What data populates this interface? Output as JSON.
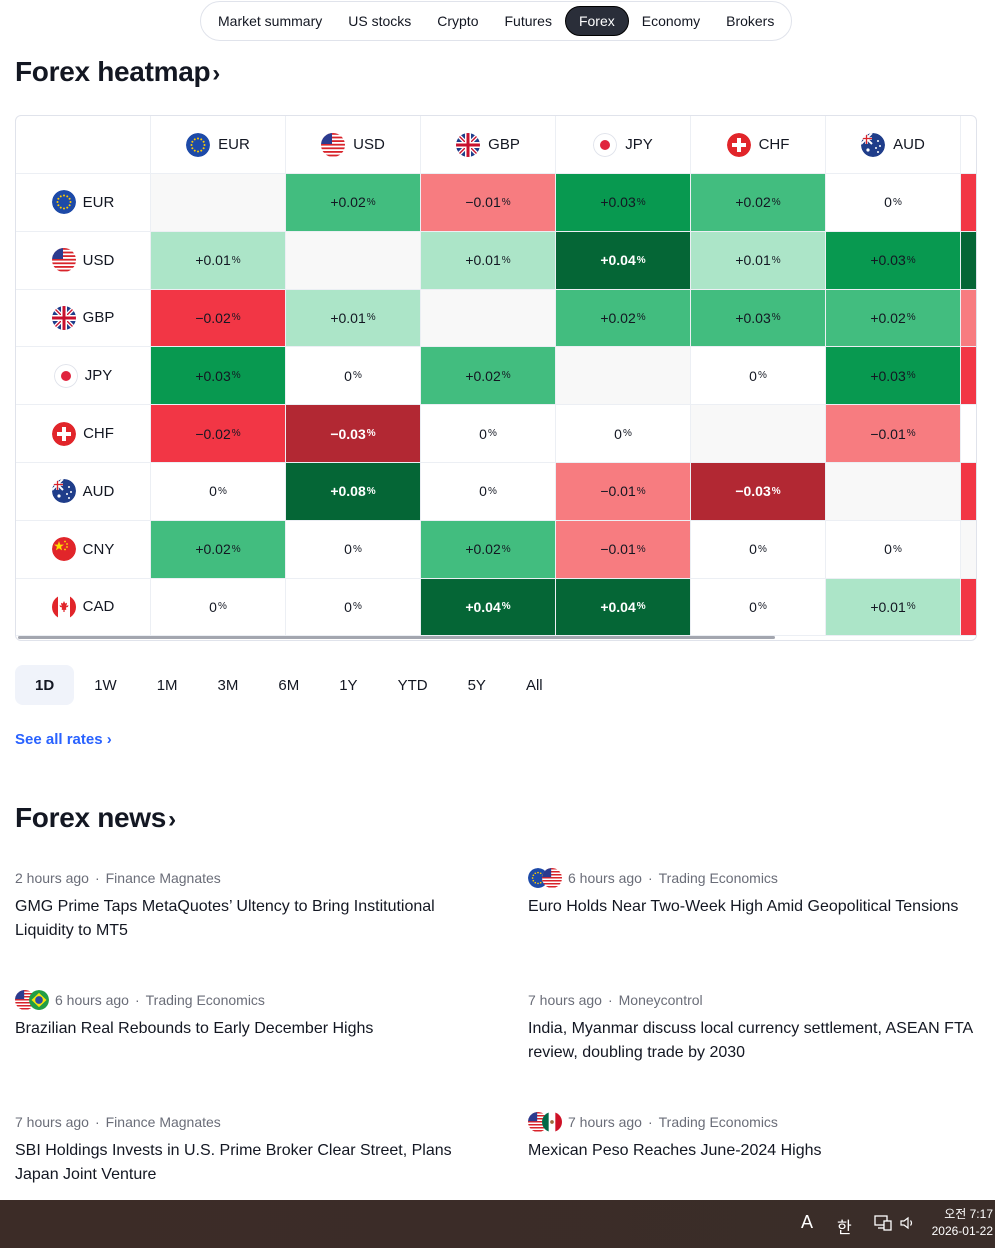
{
  "topnav": {
    "items": [
      "Market summary",
      "US stocks",
      "Crypto",
      "Futures",
      "Forex",
      "Economy",
      "Brokers"
    ],
    "active": "Forex"
  },
  "heatmap": {
    "title": "Forex heatmap",
    "chevron": "›",
    "columns": [
      "EUR",
      "USD",
      "GBP",
      "JPY",
      "CHF",
      "AUD"
    ],
    "rows": [
      {
        "code": "EUR",
        "cells": [
          {
            "v": "",
            "tone": "self"
          },
          {
            "v": "+0.02",
            "tone": "g2"
          },
          {
            "v": "−0.01",
            "tone": "r1"
          },
          {
            "v": "+0.03",
            "tone": "g3"
          },
          {
            "v": "+0.02",
            "tone": "g2"
          },
          {
            "v": "0",
            "tone": "n"
          }
        ],
        "edge": "r3"
      },
      {
        "code": "USD",
        "cells": [
          {
            "v": "+0.01",
            "tone": "g1"
          },
          {
            "v": "",
            "tone": "self"
          },
          {
            "v": "+0.01",
            "tone": "g1"
          },
          {
            "v": "+0.04",
            "tone": "g4"
          },
          {
            "v": "+0.01",
            "tone": "g1"
          },
          {
            "v": "+0.03",
            "tone": "g3"
          }
        ],
        "edge": "g4"
      },
      {
        "code": "GBP",
        "cells": [
          {
            "v": "−0.02",
            "tone": "r3"
          },
          {
            "v": "+0.01",
            "tone": "g1"
          },
          {
            "v": "",
            "tone": "self"
          },
          {
            "v": "+0.02",
            "tone": "g2"
          },
          {
            "v": "+0.03",
            "tone": "g2"
          },
          {
            "v": "+0.02",
            "tone": "g2"
          }
        ],
        "edge": "r1"
      },
      {
        "code": "JPY",
        "cells": [
          {
            "v": "+0.03",
            "tone": "g3"
          },
          {
            "v": "0",
            "tone": "n"
          },
          {
            "v": "+0.02",
            "tone": "g2"
          },
          {
            "v": "",
            "tone": "self"
          },
          {
            "v": "0",
            "tone": "n"
          },
          {
            "v": "+0.03",
            "tone": "g3"
          }
        ],
        "edge": "r3"
      },
      {
        "code": "CHF",
        "cells": [
          {
            "v": "−0.02",
            "tone": "r3"
          },
          {
            "v": "−0.03",
            "tone": "r4"
          },
          {
            "v": "0",
            "tone": "n"
          },
          {
            "v": "0",
            "tone": "n"
          },
          {
            "v": "",
            "tone": "self"
          },
          {
            "v": "−0.01",
            "tone": "r1"
          }
        ],
        "edge": "n"
      },
      {
        "code": "AUD",
        "cells": [
          {
            "v": "0",
            "tone": "n"
          },
          {
            "v": "+0.08",
            "tone": "g4"
          },
          {
            "v": "0",
            "tone": "n"
          },
          {
            "v": "−0.01",
            "tone": "r1"
          },
          {
            "v": "−0.03",
            "tone": "r4"
          },
          {
            "v": "",
            "tone": "self"
          }
        ],
        "edge": "r3"
      },
      {
        "code": "CNY",
        "cells": [
          {
            "v": "+0.02",
            "tone": "g2"
          },
          {
            "v": "0",
            "tone": "n"
          },
          {
            "v": "+0.02",
            "tone": "g2"
          },
          {
            "v": "−0.01",
            "tone": "r1"
          },
          {
            "v": "0",
            "tone": "n"
          },
          {
            "v": "0",
            "tone": "n"
          }
        ],
        "edge": "self"
      },
      {
        "code": "CAD",
        "cells": [
          {
            "v": "0",
            "tone": "n"
          },
          {
            "v": "0",
            "tone": "n"
          },
          {
            "v": "+0.04",
            "tone": "g4"
          },
          {
            "v": "+0.04",
            "tone": "g4"
          },
          {
            "v": "0",
            "tone": "n"
          },
          {
            "v": "+0.01",
            "tone": "g1"
          }
        ],
        "edge": "r3"
      }
    ],
    "pct": "%",
    "tones": {
      "g1": {
        "bg": "#ace5c8",
        "fg": "#131722"
      },
      "g2": {
        "bg": "#42bd7f",
        "fg": "#131722"
      },
      "g3": {
        "bg": "#089950",
        "fg": "#131722"
      },
      "g4": {
        "bg": "#056636",
        "fg": "#ffffff"
      },
      "r1": {
        "bg": "#f77c80",
        "fg": "#131722"
      },
      "r3": {
        "bg": "#f23645",
        "fg": "#131722"
      },
      "r4": {
        "bg": "#b22833",
        "fg": "#ffffff"
      },
      "n": {
        "bg": "#ffffff",
        "fg": "#131722"
      },
      "self": {
        "bg": "#f8f8f8",
        "fg": "#131722"
      }
    }
  },
  "ranges": {
    "items": [
      "1D",
      "1W",
      "1M",
      "3M",
      "6M",
      "1Y",
      "YTD",
      "5Y",
      "All"
    ],
    "active": "1D"
  },
  "see_all": "See all rates ›",
  "news": {
    "title": "Forex news",
    "chevron": "›",
    "items": [
      {
        "time": "2 hours ago",
        "source": "Finance Magnates",
        "headline": "GMG Prime Taps MetaQuotes’ Ultency to Bring Institutional Liquidity to MT5",
        "flags": []
      },
      {
        "time": "6 hours ago",
        "source": "Trading Economics",
        "headline": "Euro Holds Near Two-Week High Amid Geopolitical Tensions",
        "flags": [
          "EUR",
          "USD"
        ]
      },
      {
        "time": "6 hours ago",
        "source": "Trading Economics",
        "headline": "Brazilian Real Rebounds to Early December Highs",
        "flags": [
          "USD",
          "BRL"
        ]
      },
      {
        "time": "7 hours ago",
        "source": "Moneycontrol",
        "headline": "India, Myanmar discuss local currency settlement, ASEAN FTA review, doubling trade by 2030",
        "flags": []
      },
      {
        "time": "7 hours ago",
        "source": "Finance Magnates",
        "headline": "SBI Holdings Invests in U.S. Prime Broker Clear Street, Plans Japan Joint Venture",
        "flags": []
      },
      {
        "time": "7 hours ago",
        "source": "Trading Economics",
        "headline": "Mexican Peso Reaches June-2024 Highs",
        "flags": [
          "USD",
          "MXN"
        ]
      }
    ],
    "separator": "·"
  },
  "taskbar": {
    "ime_a": "A",
    "ime_han": "한",
    "time": "오전 7:17",
    "date": "2026-01-22"
  }
}
